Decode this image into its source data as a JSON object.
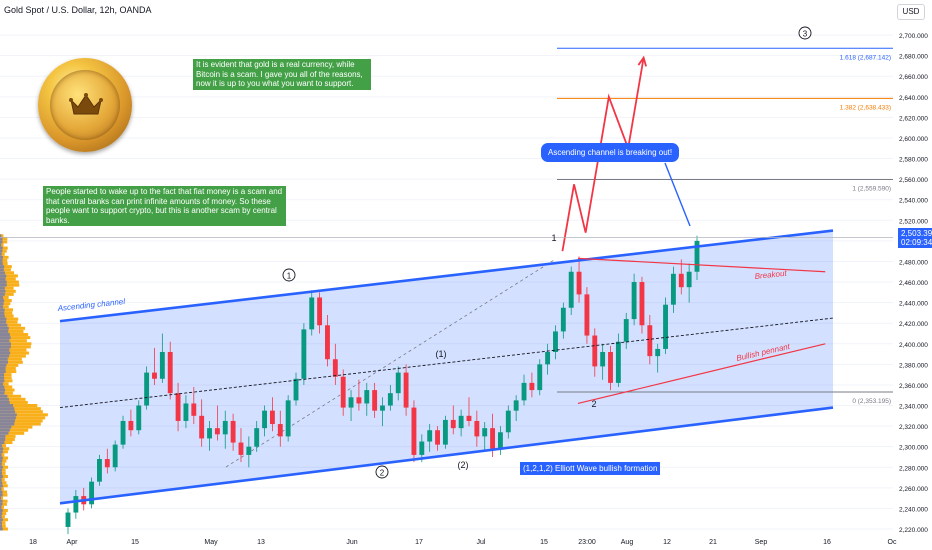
{
  "header": {
    "title": "Gold Spot / U.S. Dollar, 12h, OANDA",
    "currency": "USD"
  },
  "price_tag": {
    "price": "2,503.395",
    "countdown": "02:09:34"
  },
  "notes": {
    "green_top": "It is evident that gold is a real currency, while Bitcoin is a scam. I gave you all of the reasons, now it is up to you what you want to support.",
    "green_left": "People started to wake up to the fact that fiat money is a scam and that central banks can print infinite amounts of money. So these people want to support crypto, but this is another scam by central banks.",
    "callout": "Ascending channel is breaking out!",
    "formation": "(1,2,1,2) Elliott Wave bullish formation"
  },
  "labels": {
    "ascending_channel": "Ascending channel",
    "breakout": "Breakout",
    "bullish_pennant": "Bullish pennant",
    "wave_1_circle": "1",
    "wave_2_circle": "2",
    "wave_3_circle": "3",
    "wave_1_paren": "(1)",
    "wave_2_paren": "(2)",
    "wave_1_plain": "1",
    "wave_2_plain": "2"
  },
  "colors": {
    "bull": "#089981",
    "bear": "#f23645",
    "channel": "#2962ff",
    "channel_fill": "#2962ff",
    "projection": "#f23645",
    "volume_profile": "#f7a600",
    "volume_profile_blue": "#2962ff",
    "fib_blue": "#2962ff",
    "fib_orange": "#f57c00",
    "fib_gray": "#787b86"
  },
  "chart_data": {
    "type": "candlestick",
    "instrument": "Gold Spot / U.S. Dollar",
    "timeframe": "12h",
    "ylim": [
      2210,
      2720
    ],
    "y_ticks": [
      "2,220.000",
      "2,240.000",
      "2,260.000",
      "2,280.000",
      "2,300.000",
      "2,320.000",
      "2,340.000",
      "2,360.000",
      "2,380.000",
      "2,400.000",
      "2,420.000",
      "2,440.000",
      "2,460.000",
      "2,480.000",
      "2,500.000",
      "2,520.000",
      "2,540.000",
      "2,560.000",
      "2,580.000",
      "2,600.000",
      "2,620.000",
      "2,640.000",
      "2,660.000",
      "2,680.000",
      "2,700.000"
    ],
    "x_ticks": [
      "18",
      "Apr",
      "15",
      "May",
      "13",
      "Jun",
      "17",
      "Jul",
      "15",
      "23:00",
      "Aug",
      "12",
      "21",
      "Sep",
      "16",
      "Oc"
    ],
    "fib_levels": [
      {
        "label": "1.618 (2,687.142)",
        "price": 2687.142,
        "color": "#2962ff"
      },
      {
        "label": "1.382 (2,638.433)",
        "price": 2638.433,
        "color": "#f57c00"
      },
      {
        "label": "1 (2,559.590)",
        "price": 2559.59,
        "color": "#787b86"
      },
      {
        "label": "0 (2,353.195)",
        "price": 2353.195,
        "color": "#787b86"
      }
    ],
    "current_price": 2503.395,
    "channel_upper": [
      [
        0,
        2422
      ],
      [
        100,
        2510
      ]
    ],
    "channel_lower": [
      [
        0,
        2245
      ],
      [
        100,
        2338
      ]
    ],
    "channel_mid": [
      [
        0,
        2338
      ],
      [
        100,
        2425
      ]
    ],
    "breakout_line": [
      [
        67,
        2483
      ],
      [
        99,
        2470
      ]
    ],
    "pennant_line": [
      [
        67,
        2342
      ],
      [
        99,
        2400
      ]
    ],
    "projection_path": [
      [
        65,
        2490
      ],
      [
        66.5,
        2555
      ],
      [
        68,
        2508
      ],
      [
        71,
        2640
      ],
      [
        73.5,
        2590
      ],
      [
        75.5,
        2678
      ]
    ],
    "candles": [
      {
        "o": 2222,
        "h": 2240,
        "l": 2215,
        "c": 2236
      },
      {
        "o": 2236,
        "h": 2258,
        "l": 2230,
        "c": 2252
      },
      {
        "o": 2252,
        "h": 2260,
        "l": 2238,
        "c": 2244
      },
      {
        "o": 2244,
        "h": 2270,
        "l": 2240,
        "c": 2266
      },
      {
        "o": 2266,
        "h": 2292,
        "l": 2262,
        "c": 2288
      },
      {
        "o": 2288,
        "h": 2298,
        "l": 2274,
        "c": 2280
      },
      {
        "o": 2280,
        "h": 2306,
        "l": 2276,
        "c": 2302
      },
      {
        "o": 2302,
        "h": 2330,
        "l": 2298,
        "c": 2325
      },
      {
        "o": 2325,
        "h": 2336,
        "l": 2310,
        "c": 2316
      },
      {
        "o": 2316,
        "h": 2345,
        "l": 2312,
        "c": 2340
      },
      {
        "o": 2340,
        "h": 2378,
        "l": 2336,
        "c": 2372
      },
      {
        "o": 2372,
        "h": 2396,
        "l": 2360,
        "c": 2366
      },
      {
        "o": 2366,
        "h": 2410,
        "l": 2362,
        "c": 2392
      },
      {
        "o": 2392,
        "h": 2402,
        "l": 2346,
        "c": 2352
      },
      {
        "o": 2352,
        "h": 2362,
        "l": 2315,
        "c": 2325
      },
      {
        "o": 2325,
        "h": 2350,
        "l": 2318,
        "c": 2342
      },
      {
        "o": 2342,
        "h": 2358,
        "l": 2322,
        "c": 2330
      },
      {
        "o": 2330,
        "h": 2346,
        "l": 2300,
        "c": 2308
      },
      {
        "o": 2308,
        "h": 2325,
        "l": 2296,
        "c": 2318
      },
      {
        "o": 2318,
        "h": 2340,
        "l": 2306,
        "c": 2312
      },
      {
        "o": 2312,
        "h": 2335,
        "l": 2298,
        "c": 2325
      },
      {
        "o": 2325,
        "h": 2332,
        "l": 2296,
        "c": 2304
      },
      {
        "o": 2304,
        "h": 2318,
        "l": 2285,
        "c": 2292
      },
      {
        "o": 2292,
        "h": 2310,
        "l": 2280,
        "c": 2300
      },
      {
        "o": 2300,
        "h": 2325,
        "l": 2295,
        "c": 2318
      },
      {
        "o": 2318,
        "h": 2340,
        "l": 2310,
        "c": 2335
      },
      {
        "o": 2335,
        "h": 2348,
        "l": 2315,
        "c": 2322
      },
      {
        "o": 2322,
        "h": 2335,
        "l": 2300,
        "c": 2310
      },
      {
        "o": 2310,
        "h": 2350,
        "l": 2305,
        "c": 2345
      },
      {
        "o": 2345,
        "h": 2372,
        "l": 2340,
        "c": 2366
      },
      {
        "o": 2366,
        "h": 2420,
        "l": 2360,
        "c": 2414
      },
      {
        "o": 2414,
        "h": 2452,
        "l": 2408,
        "c": 2445
      },
      {
        "o": 2445,
        "h": 2450,
        "l": 2410,
        "c": 2418
      },
      {
        "o": 2418,
        "h": 2428,
        "l": 2378,
        "c": 2385
      },
      {
        "o": 2385,
        "h": 2400,
        "l": 2360,
        "c": 2368
      },
      {
        "o": 2368,
        "h": 2375,
        "l": 2330,
        "c": 2338
      },
      {
        "o": 2338,
        "h": 2355,
        "l": 2325,
        "c": 2348
      },
      {
        "o": 2348,
        "h": 2365,
        "l": 2335,
        "c": 2342
      },
      {
        "o": 2342,
        "h": 2362,
        "l": 2330,
        "c": 2355
      },
      {
        "o": 2355,
        "h": 2362,
        "l": 2328,
        "c": 2335
      },
      {
        "o": 2335,
        "h": 2348,
        "l": 2320,
        "c": 2340
      },
      {
        "o": 2340,
        "h": 2360,
        "l": 2335,
        "c": 2352
      },
      {
        "o": 2352,
        "h": 2378,
        "l": 2345,
        "c": 2372
      },
      {
        "o": 2372,
        "h": 2380,
        "l": 2330,
        "c": 2338
      },
      {
        "o": 2338,
        "h": 2345,
        "l": 2285,
        "c": 2292
      },
      {
        "o": 2292,
        "h": 2312,
        "l": 2285,
        "c": 2305
      },
      {
        "o": 2305,
        "h": 2322,
        "l": 2295,
        "c": 2316
      },
      {
        "o": 2316,
        "h": 2320,
        "l": 2296,
        "c": 2302
      },
      {
        "o": 2302,
        "h": 2330,
        "l": 2298,
        "c": 2326
      },
      {
        "o": 2326,
        "h": 2340,
        "l": 2312,
        "c": 2318
      },
      {
        "o": 2318,
        "h": 2336,
        "l": 2310,
        "c": 2330
      },
      {
        "o": 2330,
        "h": 2348,
        "l": 2320,
        "c": 2325
      },
      {
        "o": 2325,
        "h": 2335,
        "l": 2300,
        "c": 2310
      },
      {
        "o": 2310,
        "h": 2324,
        "l": 2296,
        "c": 2318
      },
      {
        "o": 2318,
        "h": 2332,
        "l": 2290,
        "c": 2298
      },
      {
        "o": 2298,
        "h": 2320,
        "l": 2292,
        "c": 2314
      },
      {
        "o": 2314,
        "h": 2340,
        "l": 2308,
        "c": 2335
      },
      {
        "o": 2335,
        "h": 2350,
        "l": 2325,
        "c": 2345
      },
      {
        "o": 2345,
        "h": 2370,
        "l": 2340,
        "c": 2362
      },
      {
        "o": 2362,
        "h": 2372,
        "l": 2348,
        "c": 2355
      },
      {
        "o": 2355,
        "h": 2385,
        "l": 2350,
        "c": 2380
      },
      {
        "o": 2380,
        "h": 2400,
        "l": 2370,
        "c": 2392
      },
      {
        "o": 2392,
        "h": 2418,
        "l": 2385,
        "c": 2412
      },
      {
        "o": 2412,
        "h": 2440,
        "l": 2405,
        "c": 2435
      },
      {
        "o": 2435,
        "h": 2475,
        "l": 2428,
        "c": 2470
      },
      {
        "o": 2470,
        "h": 2485,
        "l": 2440,
        "c": 2448
      },
      {
        "o": 2448,
        "h": 2455,
        "l": 2400,
        "c": 2408
      },
      {
        "o": 2408,
        "h": 2415,
        "l": 2368,
        "c": 2378
      },
      {
        "o": 2378,
        "h": 2400,
        "l": 2365,
        "c": 2392
      },
      {
        "o": 2392,
        "h": 2398,
        "l": 2355,
        "c": 2362
      },
      {
        "o": 2362,
        "h": 2410,
        "l": 2358,
        "c": 2402
      },
      {
        "o": 2402,
        "h": 2430,
        "l": 2395,
        "c": 2424
      },
      {
        "o": 2424,
        "h": 2468,
        "l": 2418,
        "c": 2460
      },
      {
        "o": 2460,
        "h": 2465,
        "l": 2410,
        "c": 2418
      },
      {
        "o": 2418,
        "h": 2428,
        "l": 2380,
        "c": 2388
      },
      {
        "o": 2388,
        "h": 2400,
        "l": 2372,
        "c": 2395
      },
      {
        "o": 2395,
        "h": 2445,
        "l": 2390,
        "c": 2438
      },
      {
        "o": 2438,
        "h": 2475,
        "l": 2430,
        "c": 2468
      },
      {
        "o": 2468,
        "h": 2482,
        "l": 2448,
        "c": 2455
      },
      {
        "o": 2455,
        "h": 2478,
        "l": 2440,
        "c": 2470
      },
      {
        "o": 2470,
        "h": 2505,
        "l": 2462,
        "c": 2500
      }
    ]
  }
}
